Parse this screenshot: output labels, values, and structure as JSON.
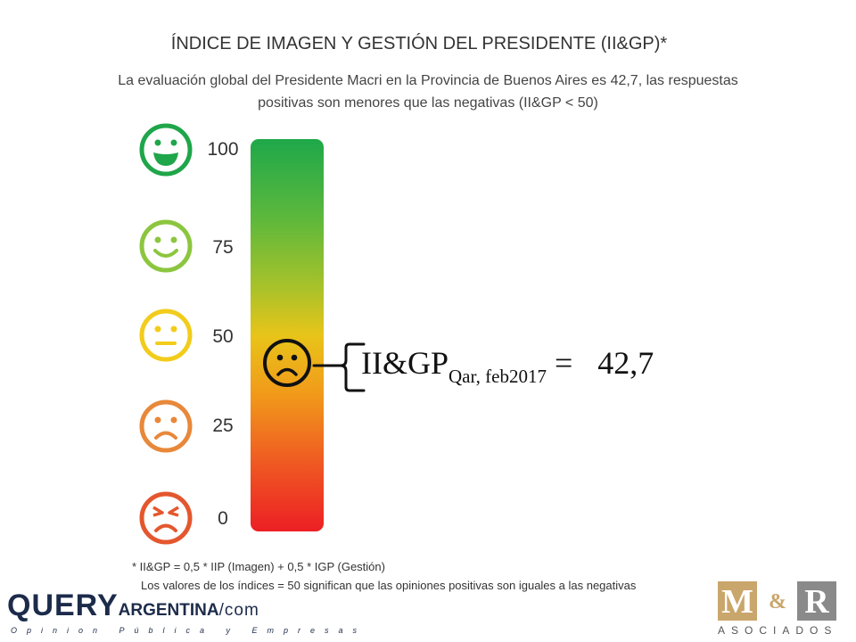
{
  "header": {
    "title": "ÍNDICE DE IMAGEN Y GESTIÓN DEL PRESIDENTE (II&GP)*",
    "subtitle": "La evaluación global del Presidente Macri  en la Provincia de Buenos Aires es 42,7, las respuestas positivas son menores que las negativas (II&GP < 50)"
  },
  "scale": {
    "labels": [
      "100",
      "75",
      "50",
      "25",
      "0"
    ],
    "faces": [
      "very-happy-face-icon",
      "smile-face-icon",
      "neutral-face-icon",
      "sad-face-icon",
      "angry-face-icon"
    ],
    "colors": [
      "#1fa64a",
      "#8cc63f",
      "#f2cc1b",
      "#e8883a",
      "#e4572e"
    ]
  },
  "result": {
    "prefix": "II&GP",
    "subscript": "Qar, feb2017",
    "equals": " =",
    "value": "42,7",
    "marker_icon": "sad-face-icon"
  },
  "footnotes": {
    "line1": "* II&GP = 0,5 * IIP (Imagen) + 0,5 * IGP (Gestión)",
    "line2": "Los valores de los índices = 50 significan que las opiniones positivas son iguales a las negativas"
  },
  "logos": {
    "query_main": "QUERY",
    "query_arg": "ARGENTINA",
    "query_com": "/com",
    "query_tagline": "Opinion Pública y Empresas",
    "mr_m": "M",
    "mr_amp": "&",
    "mr_r": "R",
    "mr_sub": "ASOCIADOS"
  }
}
